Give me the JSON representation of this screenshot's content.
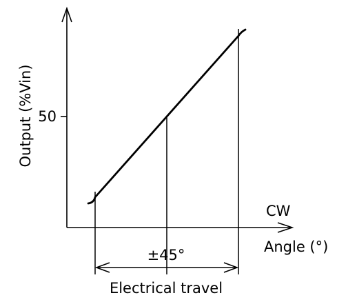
{
  "chart_data": {
    "type": "line",
    "ylabel": "Output (%Vin)",
    "ytick_label": "50",
    "ytick_value": 50,
    "direction_label": "CW",
    "xlabel": "Angle (°)",
    "span_label": "±45°",
    "travel_label": "Electrical travel",
    "x_range": [
      -45,
      45
    ],
    "y_range": [
      0,
      100
    ],
    "series": [
      {
        "x": [
          -45,
          0,
          45
        ],
        "y": [
          0,
          50,
          100
        ]
      }
    ],
    "markers": [
      -45,
      0,
      45
    ]
  }
}
